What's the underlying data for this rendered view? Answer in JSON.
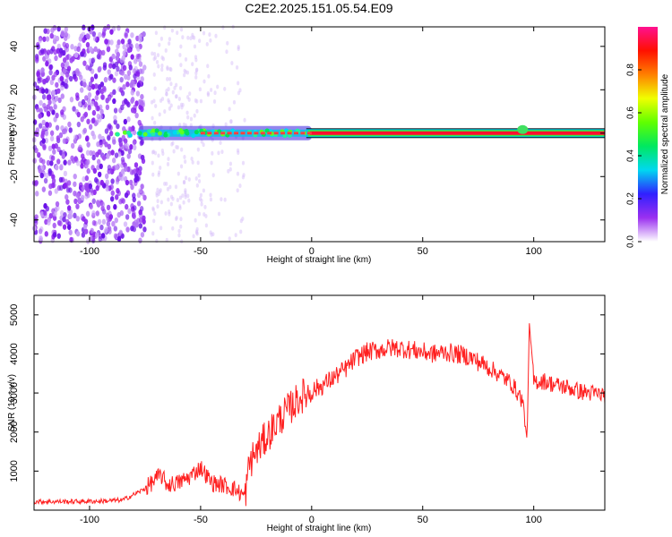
{
  "title": "C2E2.2025.151.05.54.E09",
  "chart_data": [
    {
      "type": "heatmap",
      "xlabel": "Height of straight line (km)",
      "ylabel": "Frequency (Hz)",
      "xlim": [
        -125,
        132
      ],
      "ylim": [
        -50,
        49
      ],
      "x_ticks": [
        -100,
        -50,
        0,
        50,
        100
      ],
      "y_ticks": [
        -40,
        -20,
        0,
        20,
        40
      ],
      "grid": false,
      "colorbar": {
        "label": "Normalized spectral amplitude",
        "range": [
          0,
          1
        ],
        "ticks": [
          0.0,
          0.2,
          0.4,
          0.6,
          0.8
        ],
        "colors": [
          "#ffffff",
          "#9a30f0",
          "#3020ff",
          "#00d8f0",
          "#00e860",
          "#60ff00",
          "#f0ff00",
          "#ff8000",
          "#ff1000",
          "#ff1090"
        ]
      },
      "description_bands": {
        "noise_region_km": [
          -125,
          -75
        ],
        "signal_centerline_hz": 0,
        "signal_strong_from_km": 0,
        "signal_strong_to_km": 132
      }
    },
    {
      "type": "line",
      "xlabel": "Height of straight line (km)",
      "ylabel": "SNR (10 * v/v)",
      "xlim": [
        -125,
        132
      ],
      "ylim": [
        0,
        5500
      ],
      "x_ticks": [
        -100,
        -50,
        0,
        50,
        100
      ],
      "y_ticks": [
        1000,
        2000,
        3000,
        4000,
        5000
      ],
      "grid": false,
      "series": [
        {
          "color": "#ff2020",
          "x": [
            -125,
            -110,
            -95,
            -85,
            -80,
            -75,
            -70,
            -68,
            -65,
            -60,
            -55,
            -50,
            -45,
            -40,
            -35,
            -30,
            -28,
            -25,
            -20,
            -15,
            -10,
            -5,
            0,
            5,
            10,
            15,
            20,
            25,
            30,
            35,
            40,
            45,
            50,
            55,
            60,
            65,
            70,
            75,
            80,
            85,
            90,
            95,
            97,
            98,
            100,
            105,
            110,
            115,
            120,
            125,
            132
          ],
          "values": [
            220,
            220,
            230,
            260,
            400,
            550,
            800,
            900,
            650,
            700,
            850,
            1100,
            700,
            650,
            550,
            350,
            1200,
            1500,
            1900,
            2300,
            2600,
            2900,
            3050,
            3200,
            3400,
            3600,
            3900,
            4050,
            4100,
            4150,
            4150,
            4100,
            4050,
            4000,
            4050,
            4000,
            3950,
            3800,
            3650,
            3450,
            3250,
            2800,
            1800,
            4800,
            3300,
            3300,
            3200,
            3150,
            3050,
            3000,
            2950
          ]
        }
      ]
    }
  ]
}
